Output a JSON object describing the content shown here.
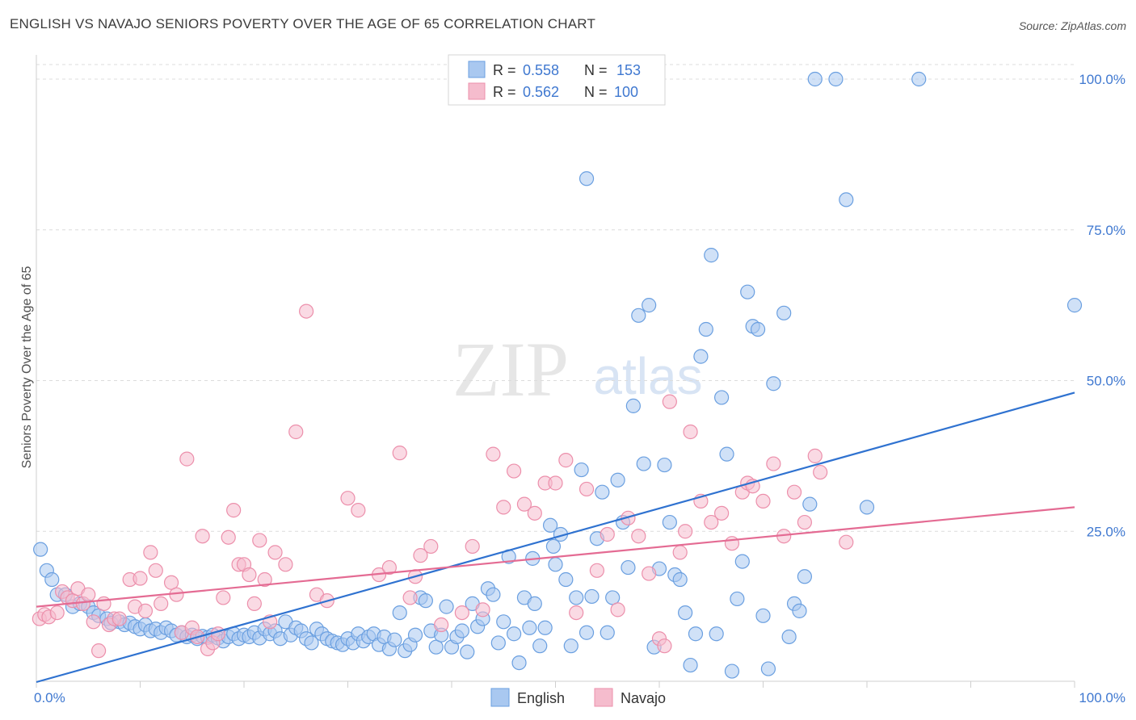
{
  "header": {
    "title": "ENGLISH VS NAVAJO SENIORS POVERTY OVER THE AGE OF 65 CORRELATION CHART",
    "source": "Source: ZipAtlas.com"
  },
  "watermark": {
    "zip": "ZIP",
    "atlas": "atlas"
  },
  "colors": {
    "english_fill": "#a9c8f0",
    "english_stroke": "#6a9fe0",
    "english_line": "#2f72d0",
    "navajo_fill": "#f5bccd",
    "navajo_stroke": "#ec8fab",
    "navajo_line": "#e46b93",
    "axis_label": "#3f78d0",
    "grid": "#dcdcdc"
  },
  "chart_data": {
    "type": "scatter",
    "title": "ENGLISH VS NAVAJO SENIORS POVERTY OVER THE AGE OF 65 CORRELATION CHART",
    "ylabel": "Seniors Poverty Over the Age of 65",
    "xlabel": "",
    "xlim": [
      0,
      100
    ],
    "ylim": [
      0,
      105
    ],
    "x_tick_labels": [
      "0.0%",
      "100.0%"
    ],
    "y_ticks": [
      25,
      50,
      75,
      100
    ],
    "y_tick_labels": [
      "25.0%",
      "50.0%",
      "75.0%",
      "100.0%"
    ],
    "grid": "horizontal dashed",
    "legend_position": "top-center",
    "stats": [
      {
        "label_r": "R =",
        "r": "0.558",
        "label_n": "N =",
        "n": "153"
      },
      {
        "label_r": "R =",
        "r": "0.562",
        "label_n": "N =",
        "n": "100"
      }
    ],
    "series": [
      {
        "name": "English",
        "trend": {
          "x0": 0,
          "y0": 0,
          "x1": 100,
          "y1": 48
        },
        "points": [
          [
            0.4,
            22
          ],
          [
            1,
            18.5
          ],
          [
            1.5,
            17
          ],
          [
            2,
            14.5
          ],
          [
            2.8,
            14.5
          ],
          [
            3.5,
            12.5
          ],
          [
            4.2,
            13
          ],
          [
            5,
            12.5
          ],
          [
            5.5,
            11.5
          ],
          [
            6,
            11
          ],
          [
            6.8,
            10.5
          ],
          [
            7.2,
            9.8
          ],
          [
            8,
            10
          ],
          [
            8.5,
            9.5
          ],
          [
            9,
            9.8
          ],
          [
            9.5,
            9.2
          ],
          [
            10,
            8.8
          ],
          [
            10.5,
            9.5
          ],
          [
            11,
            8.5
          ],
          [
            11.5,
            8.8
          ],
          [
            12,
            8.2
          ],
          [
            12.5,
            9
          ],
          [
            13,
            8.5
          ],
          [
            13.5,
            7.8
          ],
          [
            14,
            8.2
          ],
          [
            14.5,
            7.5
          ],
          [
            15,
            7.8
          ],
          [
            15.5,
            7.2
          ],
          [
            16,
            7.6
          ],
          [
            16.5,
            7.4
          ],
          [
            17,
            7.8
          ],
          [
            17.5,
            7.3
          ],
          [
            18,
            6.8
          ],
          [
            18.5,
            7.5
          ],
          [
            19,
            8
          ],
          [
            19.5,
            7.2
          ],
          [
            20,
            7.8
          ],
          [
            20.5,
            7.5
          ],
          [
            21,
            8.2
          ],
          [
            21.5,
            7.3
          ],
          [
            22,
            8.8
          ],
          [
            22.5,
            8
          ],
          [
            23,
            8.5
          ],
          [
            23.5,
            7.2
          ],
          [
            24,
            10
          ],
          [
            24.5,
            7.8
          ],
          [
            25,
            9
          ],
          [
            25.5,
            8.5
          ],
          [
            26,
            7.2
          ],
          [
            26.5,
            6.5
          ],
          [
            27,
            8.8
          ],
          [
            27.5,
            8
          ],
          [
            28,
            7.2
          ],
          [
            28.5,
            6.8
          ],
          [
            29,
            6.5
          ],
          [
            29.5,
            6.2
          ],
          [
            30,
            7.2
          ],
          [
            30.5,
            6.5
          ],
          [
            31,
            8
          ],
          [
            31.5,
            6.8
          ],
          [
            32,
            7.5
          ],
          [
            32.5,
            8
          ],
          [
            33,
            6.2
          ],
          [
            33.5,
            7.5
          ],
          [
            34,
            5.5
          ],
          [
            34.5,
            7
          ],
          [
            35,
            11.5
          ],
          [
            35.5,
            5.2
          ],
          [
            36,
            6.2
          ],
          [
            36.5,
            7.8
          ],
          [
            37,
            14
          ],
          [
            37.5,
            13.5
          ],
          [
            38,
            8.5
          ],
          [
            38.5,
            5.8
          ],
          [
            39,
            7.8
          ],
          [
            39.5,
            12.5
          ],
          [
            40,
            5.8
          ],
          [
            40.5,
            7.5
          ],
          [
            41,
            8.5
          ],
          [
            41.5,
            5
          ],
          [
            42,
            13
          ],
          [
            42.5,
            9.2
          ],
          [
            43,
            10.5
          ],
          [
            43.5,
            15.5
          ],
          [
            44,
            14.5
          ],
          [
            44.5,
            6.5
          ],
          [
            45,
            10
          ],
          [
            45.5,
            20.8
          ],
          [
            46,
            8
          ],
          [
            46.5,
            3.2
          ],
          [
            47,
            14
          ],
          [
            47.5,
            9
          ],
          [
            47.8,
            20.5
          ],
          [
            48,
            13
          ],
          [
            48.5,
            6
          ],
          [
            49,
            9
          ],
          [
            49.5,
            26
          ],
          [
            49.8,
            22.5
          ],
          [
            50,
            19.5
          ],
          [
            50.5,
            24.5
          ],
          [
            51,
            17
          ],
          [
            51.5,
            6
          ],
          [
            52,
            14
          ],
          [
            52.5,
            35.2
          ],
          [
            53,
            8.2
          ],
          [
            53.5,
            14.2
          ],
          [
            54,
            23.8
          ],
          [
            54.5,
            31.5
          ],
          [
            55,
            8.2
          ],
          [
            55.5,
            14
          ],
          [
            56,
            33.5
          ],
          [
            56.5,
            26.5
          ],
          [
            57,
            19
          ],
          [
            57.5,
            45.8
          ],
          [
            58,
            60.8
          ],
          [
            58.5,
            36.2
          ],
          [
            59,
            62.5
          ],
          [
            59.5,
            5.8
          ],
          [
            60,
            18.8
          ],
          [
            60.5,
            36
          ],
          [
            61,
            26.5
          ],
          [
            61.5,
            17.8
          ],
          [
            62,
            17
          ],
          [
            62.5,
            11.5
          ],
          [
            63,
            2.8
          ],
          [
            63.5,
            8
          ],
          [
            64,
            54
          ],
          [
            64.5,
            58.5
          ],
          [
            65,
            70.8
          ],
          [
            65.5,
            8
          ],
          [
            66,
            47.2
          ],
          [
            66.5,
            37.8
          ],
          [
            67,
            1.8
          ],
          [
            67.5,
            13.8
          ],
          [
            68,
            20
          ],
          [
            68.5,
            64.7
          ],
          [
            69,
            59
          ],
          [
            69.5,
            58.5
          ],
          [
            70,
            11
          ],
          [
            70.5,
            2.2
          ],
          [
            71,
            49.5
          ],
          [
            72,
            61.2
          ],
          [
            72.5,
            7.5
          ],
          [
            73,
            13
          ],
          [
            73.5,
            11.8
          ],
          [
            74,
            17.5
          ],
          [
            74.5,
            29.5
          ],
          [
            75,
            100
          ],
          [
            77,
            100
          ],
          [
            78,
            80
          ],
          [
            80,
            29
          ],
          [
            85,
            100
          ],
          [
            100,
            62.5
          ],
          [
            53,
            83.5
          ]
        ]
      },
      {
        "name": "Navajo",
        "trend": {
          "x0": 0,
          "y0": 12.5,
          "x1": 100,
          "y1": 29
        },
        "points": [
          [
            0.3,
            10.5
          ],
          [
            0.8,
            11.2
          ],
          [
            1.2,
            10.8
          ],
          [
            2,
            11.5
          ],
          [
            2.5,
            15
          ],
          [
            3,
            14
          ],
          [
            3.5,
            13.5
          ],
          [
            4,
            15.5
          ],
          [
            4.5,
            13
          ],
          [
            5,
            14.5
          ],
          [
            5.5,
            10
          ],
          [
            6,
            5.2
          ],
          [
            6.5,
            13
          ],
          [
            7,
            9.5
          ],
          [
            7.5,
            10.5
          ],
          [
            8,
            10.5
          ],
          [
            9,
            17
          ],
          [
            9.5,
            12.5
          ],
          [
            10,
            17.2
          ],
          [
            10.5,
            11.8
          ],
          [
            11,
            21.5
          ],
          [
            11.5,
            18.5
          ],
          [
            12,
            13
          ],
          [
            13,
            16.5
          ],
          [
            13.5,
            14.5
          ],
          [
            14,
            8.2
          ],
          [
            14.5,
            37
          ],
          [
            15,
            9
          ],
          [
            15.5,
            7.5
          ],
          [
            16,
            24.2
          ],
          [
            16.5,
            5.5
          ],
          [
            17,
            6.5
          ],
          [
            17.5,
            8
          ],
          [
            18,
            14
          ],
          [
            18.5,
            24
          ],
          [
            19,
            28.5
          ],
          [
            19.5,
            19.5
          ],
          [
            20,
            19.5
          ],
          [
            20.5,
            17.8
          ],
          [
            21,
            13
          ],
          [
            21.5,
            23.5
          ],
          [
            22,
            17
          ],
          [
            22.5,
            10
          ],
          [
            23,
            21.5
          ],
          [
            24,
            19.5
          ],
          [
            25,
            41.5
          ],
          [
            26,
            61.5
          ],
          [
            27,
            14.5
          ],
          [
            28,
            13.5
          ],
          [
            30,
            30.5
          ],
          [
            31,
            28.5
          ],
          [
            33,
            17.8
          ],
          [
            34,
            19
          ],
          [
            35,
            38
          ],
          [
            36,
            14
          ],
          [
            36.5,
            17.5
          ],
          [
            37,
            21
          ],
          [
            38,
            22.5
          ],
          [
            39,
            9.5
          ],
          [
            41,
            11.5
          ],
          [
            42,
            22.5
          ],
          [
            43,
            12
          ],
          [
            44,
            37.8
          ],
          [
            45,
            29
          ],
          [
            46,
            35
          ],
          [
            47,
            29.5
          ],
          [
            48,
            28
          ],
          [
            49,
            33
          ],
          [
            50,
            33
          ],
          [
            51,
            36.8
          ],
          [
            52,
            11.5
          ],
          [
            53,
            32
          ],
          [
            54,
            18.5
          ],
          [
            55,
            24.5
          ],
          [
            56,
            12
          ],
          [
            57,
            27.2
          ],
          [
            58,
            24.2
          ],
          [
            59,
            18
          ],
          [
            60,
            7.2
          ],
          [
            60.5,
            6
          ],
          [
            61,
            46.5
          ],
          [
            62,
            21.5
          ],
          [
            62.5,
            25
          ],
          [
            63,
            41.5
          ],
          [
            64,
            30
          ],
          [
            65,
            26.5
          ],
          [
            66,
            28
          ],
          [
            67,
            23
          ],
          [
            68,
            31.5
          ],
          [
            68.5,
            33
          ],
          [
            69,
            32.5
          ],
          [
            70,
            30
          ],
          [
            71,
            36.2
          ],
          [
            72,
            24.2
          ],
          [
            73,
            31.5
          ],
          [
            74,
            26.5
          ],
          [
            75,
            37.5
          ],
          [
            75.5,
            34.8
          ],
          [
            78,
            23.2
          ]
        ]
      }
    ]
  },
  "legend": {
    "items": [
      {
        "label": "English"
      },
      {
        "label": "Navajo"
      }
    ]
  }
}
